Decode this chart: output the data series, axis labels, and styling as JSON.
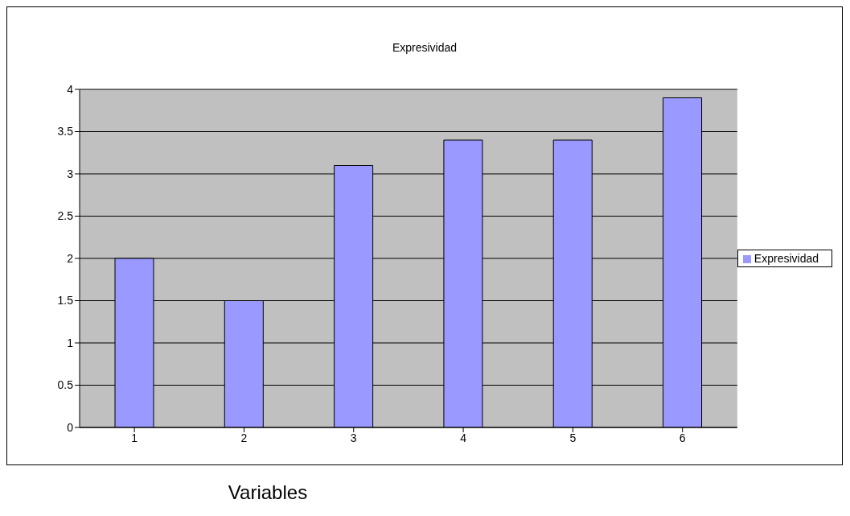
{
  "chart_data": {
    "type": "bar",
    "title": "Expresividad",
    "xlabel": "Variables",
    "categories": [
      "1",
      "2",
      "3",
      "4",
      "5",
      "6"
    ],
    "series": [
      {
        "name": "Expresividad",
        "color": "#9999ff",
        "values": [
          2,
          1.5,
          3.1,
          3.4,
          3.4,
          3.9
        ]
      }
    ],
    "ylim": [
      0,
      4
    ],
    "yticks": [
      0,
      0.5,
      1,
      1.5,
      2,
      2.5,
      3,
      3.5,
      4
    ],
    "grid": "y",
    "legend": "right"
  }
}
